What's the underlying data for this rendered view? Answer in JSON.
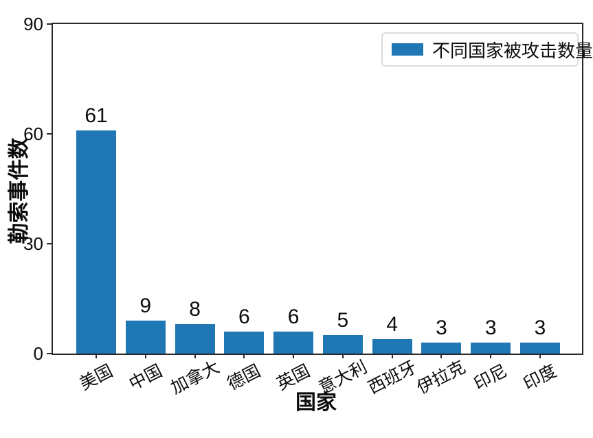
{
  "chart_data": {
    "type": "bar",
    "categories": [
      "美国",
      "中国",
      "加拿大",
      "德国",
      "英国",
      "意大利",
      "西班牙",
      "伊拉克",
      "印尼",
      "印度"
    ],
    "values": [
      61,
      9,
      8,
      6,
      6,
      5,
      4,
      3,
      3,
      3
    ],
    "value_labels": [
      "61",
      "9",
      "8",
      "6",
      "6",
      "5",
      "4",
      "3",
      "3",
      "3"
    ],
    "title": "",
    "xlabel": "国家",
    "ylabel": "勒索事件数",
    "ylim": [
      0,
      90
    ],
    "yticks": [
      0,
      30,
      60,
      90
    ],
    "ytick_labels": [
      "0",
      "30",
      "60",
      "90"
    ],
    "grid": false,
    "bar_color": "#1f77b4",
    "axis_color": "#2a2a2a",
    "legend": {
      "label": "不同国家被攻击数量",
      "position": "upper right",
      "swatch_color": "#1f77b4"
    }
  }
}
